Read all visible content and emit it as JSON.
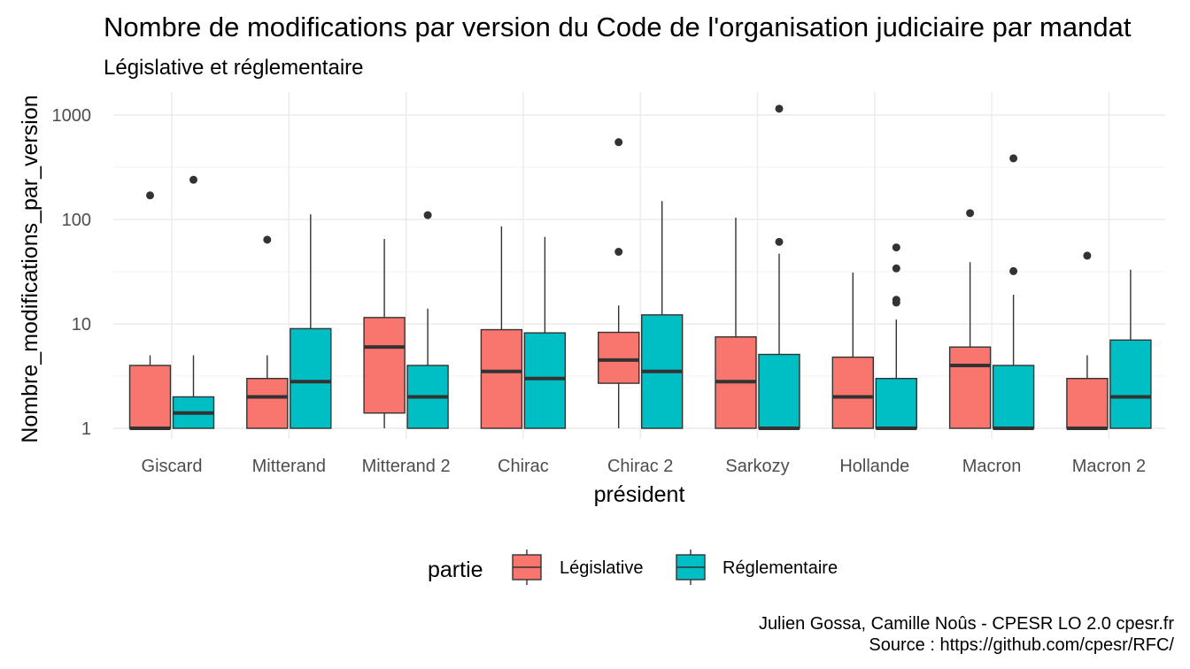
{
  "chart_data": {
    "type": "boxplot",
    "title": "Nombre de modifications par version du Code de l'organisation judiciaire par mandat",
    "subtitle": "Législative et réglementaire",
    "xlabel": "président",
    "ylabel": "Nombre_modifications_par_version",
    "yscale": "log10",
    "ylim": [
      0.85,
      1600
    ],
    "yticks": [
      1,
      10,
      100,
      1000
    ],
    "yticklabels": [
      "1",
      "10",
      "100",
      "1000"
    ],
    "grid": true,
    "legend": {
      "title": "partie",
      "position": "bottom"
    },
    "categories": [
      "Giscard",
      "Mitterand",
      "Mitterand 2",
      "Chirac",
      "Chirac 2",
      "Sarkozy",
      "Hollande",
      "Macron",
      "Macron 2"
    ],
    "series": [
      {
        "name": "Législative",
        "color": "#F8766D",
        "boxes": [
          {
            "min": 1,
            "q1": 1,
            "median": 1,
            "q3": 4,
            "max": 5,
            "outliers": [
              170
            ]
          },
          {
            "min": 1,
            "q1": 1,
            "median": 2,
            "q3": 3,
            "max": 5,
            "outliers": [
              64
            ]
          },
          {
            "min": 1,
            "q1": 1.4,
            "median": 6,
            "q3": 11.5,
            "max": 65,
            "outliers": []
          },
          {
            "min": 1,
            "q1": 1,
            "median": 3.5,
            "q3": 8.8,
            "max": 86,
            "outliers": []
          },
          {
            "min": 1,
            "q1": 2.7,
            "median": 4.5,
            "q3": 8.3,
            "max": 15,
            "outliers": [
              49,
              550
            ]
          },
          {
            "min": 1,
            "q1": 1,
            "median": 2.8,
            "q3": 7.5,
            "max": 104,
            "outliers": []
          },
          {
            "min": 1,
            "q1": 1,
            "median": 2,
            "q3": 4.8,
            "max": 31,
            "outliers": []
          },
          {
            "min": 1,
            "q1": 1,
            "median": 4,
            "q3": 6,
            "max": 39,
            "outliers": [
              115
            ]
          },
          {
            "min": 1,
            "q1": 1,
            "median": 1,
            "q3": 3,
            "max": 5,
            "outliers": [
              45
            ]
          }
        ]
      },
      {
        "name": "Réglementaire",
        "color": "#00BFC4",
        "boxes": [
          {
            "min": 1,
            "q1": 1,
            "median": 1.4,
            "q3": 2,
            "max": 5,
            "outliers": [
              240
            ]
          },
          {
            "min": 1,
            "q1": 1,
            "median": 2.8,
            "q3": 9,
            "max": 112,
            "outliers": []
          },
          {
            "min": 1,
            "q1": 1,
            "median": 2,
            "q3": 4,
            "max": 14,
            "outliers": [
              110
            ]
          },
          {
            "min": 1,
            "q1": 1,
            "median": 3,
            "q3": 8.2,
            "max": 68,
            "outliers": []
          },
          {
            "min": 1,
            "q1": 1,
            "median": 3.5,
            "q3": 12.2,
            "max": 150,
            "outliers": []
          },
          {
            "min": 1,
            "q1": 1,
            "median": 1,
            "q3": 5.1,
            "max": 47,
            "outliers": [
              61,
              1150
            ]
          },
          {
            "min": 1,
            "q1": 1,
            "median": 1,
            "q3": 3,
            "max": 11,
            "outliers": [
              16,
              17,
              34,
              54
            ]
          },
          {
            "min": 1,
            "q1": 1,
            "median": 1,
            "q3": 4,
            "max": 19,
            "outliers": [
              32,
              385
            ]
          },
          {
            "min": 1,
            "q1": 1,
            "median": 2,
            "q3": 7,
            "max": 33,
            "outliers": []
          }
        ]
      }
    ]
  },
  "caption": {
    "line1": "Julien Gossa, Camille Noûs - CPESR LO 2.0 cpesr.fr",
    "line2": "Source : https://github.com/cpesr/RFC/"
  }
}
